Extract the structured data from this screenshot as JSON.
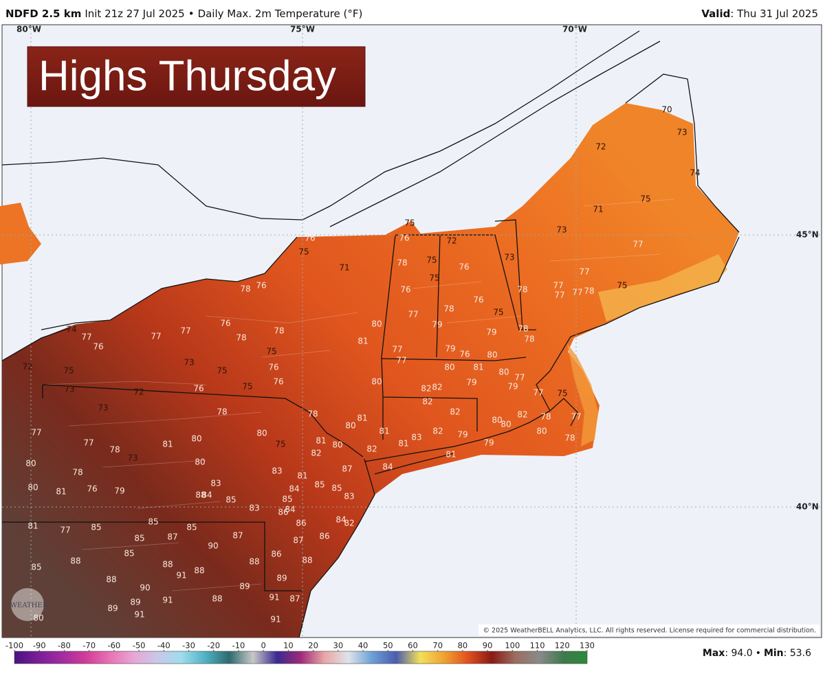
{
  "header": {
    "model": "NDFD 2.5 km",
    "init": "Init 21z 27 Jul 2025",
    "separator": "•",
    "product": "Daily Max. 2m Temperature (°F)",
    "valid_label": "Valid",
    "valid_text": ": Thu 31 Jul 2025"
  },
  "overlay_title": "Highs Thursday",
  "map": {
    "lon_labels": [
      "80°W",
      "75°W",
      "70°W"
    ],
    "lat_labels": [
      "45°N",
      "40°N"
    ],
    "logo": "WEATHER",
    "copyright": "© 2025 WeatherBELL Analytics, LLC. All rights reserved. License required for commercial distribution.",
    "temperatures": [
      70,
      73,
      72,
      74,
      75,
      71,
      73,
      77,
      77,
      77,
      77,
      77,
      78,
      75,
      78,
      73,
      75,
      76,
      78,
      75,
      76,
      72,
      75,
      76,
      75,
      78,
      76,
      77,
      79,
      79,
      78,
      78,
      79,
      76,
      80,
      80,
      81,
      80,
      77,
      79,
      79,
      82,
      82,
      82,
      82,
      82,
      79,
      79,
      80,
      80,
      82,
      78,
      77,
      75,
      77,
      80,
      78,
      81,
      83,
      81,
      81,
      82,
      84,
      87,
      80,
      81,
      82,
      81,
      80,
      80,
      80,
      81,
      77,
      77,
      71,
      75,
      76,
      76,
      76,
      78,
      76,
      78,
      78,
      75,
      76,
      76,
      75,
      75,
      76,
      73,
      77,
      77,
      76,
      77,
      74,
      72,
      75,
      73,
      72,
      73,
      78,
      78,
      80,
      75,
      80,
      81,
      80,
      73,
      78,
      77,
      77,
      80,
      78,
      80,
      81,
      76,
      79,
      83,
      88,
      84,
      85,
      83,
      83,
      81,
      84,
      85,
      85,
      83,
      85,
      84,
      86,
      86,
      84,
      82,
      86,
      87,
      87,
      90,
      85,
      87,
      85,
      85,
      85,
      77,
      81,
      85,
      88,
      85,
      88,
      88,
      91,
      88,
      90,
      88,
      86,
      88,
      89,
      89,
      88,
      91,
      89,
      89,
      91,
      91,
      87,
      91,
      80
    ]
  },
  "colorbar": {
    "ticks": [
      -100,
      -90,
      -80,
      -70,
      -60,
      -50,
      -40,
      -30,
      -20,
      -10,
      0,
      10,
      20,
      30,
      40,
      50,
      60,
      70,
      80,
      90,
      100,
      110,
      120,
      130
    ]
  },
  "stats": {
    "max_label": "Max",
    "max_text": ": 94.0",
    "separator": "•",
    "min_label": "Min",
    "min_text": ": 53.6"
  }
}
